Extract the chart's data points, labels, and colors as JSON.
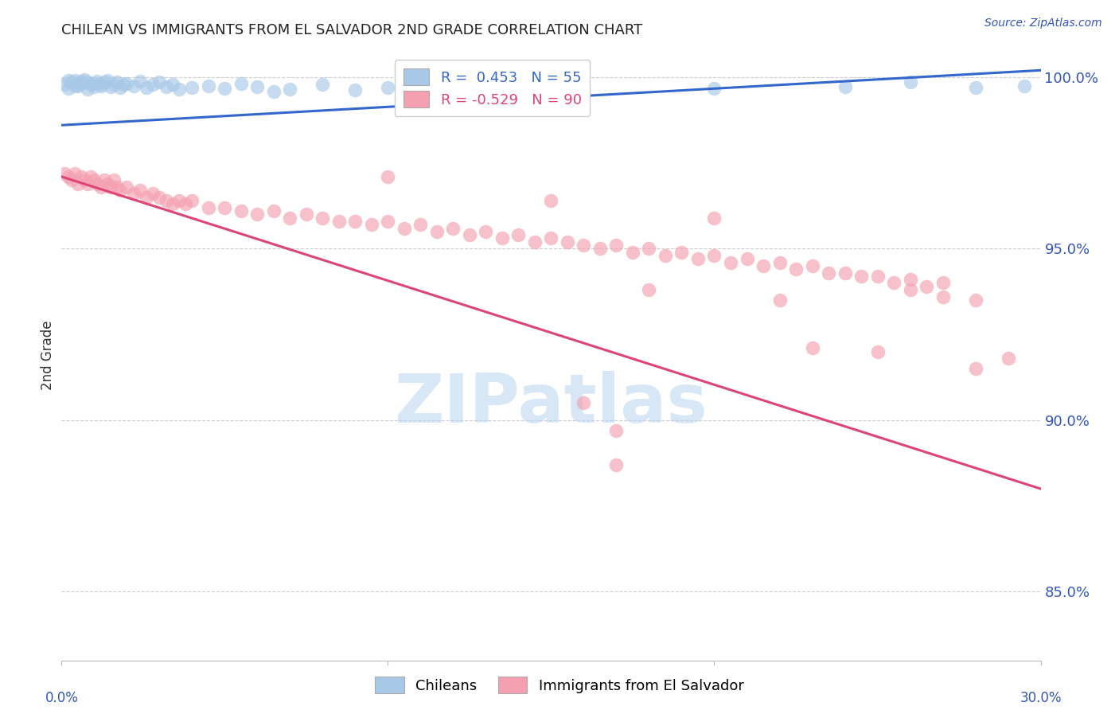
{
  "title": "CHILEAN VS IMMIGRANTS FROM EL SALVADOR 2ND GRADE CORRELATION CHART",
  "source": "Source: ZipAtlas.com",
  "ylabel": "2nd Grade",
  "legend_chileans": "Chileans",
  "legend_immigrants": "Immigrants from El Salvador",
  "R_chileans": 0.453,
  "N_chileans": 55,
  "R_immigrants": -0.529,
  "N_immigrants": 90,
  "blue_color": "#a8c8e8",
  "pink_color": "#f4a0b0",
  "blue_line_color": "#3366cc",
  "pink_line_color": "#dd4477",
  "title_color": "#222222",
  "axis_color": "#3355bb",
  "watermark_color": "#b8d4ee",
  "background_color": "#ffffff",
  "grid_color": "#cccccc",
  "xlim": [
    0.0,
    0.3
  ],
  "ylim": [
    0.83,
    1.008
  ],
  "yticks": [
    0.85,
    0.9,
    0.95,
    1.0
  ],
  "ytick_labels": [
    "85.0%",
    "90.0%",
    "95.0%",
    "100.0%"
  ],
  "xtick_positions": [
    0.0,
    0.1,
    0.2,
    0.3
  ],
  "blue_line_x": [
    0.0,
    0.3
  ],
  "blue_line_y": [
    0.986,
    1.002
  ],
  "pink_line_x": [
    0.0,
    0.3
  ],
  "pink_line_y": [
    0.971,
    0.88
  ],
  "blue_points": [
    [
      0.001,
      0.998
    ],
    [
      0.002,
      0.999
    ],
    [
      0.003,
      0.9985
    ],
    [
      0.004,
      0.999
    ],
    [
      0.005,
      0.9975
    ],
    [
      0.006,
      0.9988
    ],
    [
      0.007,
      0.9992
    ],
    [
      0.008,
      0.9985
    ],
    [
      0.009,
      0.9978
    ],
    [
      0.01,
      0.9982
    ],
    [
      0.011,
      0.9988
    ],
    [
      0.012,
      0.9975
    ],
    [
      0.013,
      0.9985
    ],
    [
      0.014,
      0.999
    ],
    [
      0.015,
      0.9972
    ],
    [
      0.016,
      0.998
    ],
    [
      0.017,
      0.9985
    ],
    [
      0.018,
      0.997
    ],
    [
      0.019,
      0.9978
    ],
    [
      0.02,
      0.9982
    ],
    [
      0.022,
      0.9975
    ],
    [
      0.024,
      0.9988
    ],
    [
      0.026,
      0.997
    ],
    [
      0.028,
      0.9978
    ],
    [
      0.03,
      0.9985
    ],
    [
      0.032,
      0.9972
    ],
    [
      0.034,
      0.998
    ],
    [
      0.036,
      0.9965
    ],
    [
      0.04,
      0.997
    ],
    [
      0.045,
      0.9975
    ],
    [
      0.05,
      0.9968
    ],
    [
      0.055,
      0.9982
    ],
    [
      0.06,
      0.9972
    ],
    [
      0.065,
      0.9958
    ],
    [
      0.07,
      0.9965
    ],
    [
      0.08,
      0.9978
    ],
    [
      0.09,
      0.9962
    ],
    [
      0.1,
      0.997
    ],
    [
      0.11,
      0.9975
    ],
    [
      0.12,
      0.998
    ],
    [
      0.13,
      0.9968
    ],
    [
      0.14,
      0.9965
    ],
    [
      0.15,
      0.9972
    ],
    [
      0.16,
      0.996
    ],
    [
      0.2,
      0.9968
    ],
    [
      0.24,
      0.9972
    ],
    [
      0.26,
      0.9985
    ],
    [
      0.28,
      0.997
    ],
    [
      0.295,
      0.9975
    ],
    [
      0.002,
      0.9968
    ],
    [
      0.004,
      0.9975
    ],
    [
      0.006,
      0.9982
    ],
    [
      0.008,
      0.9965
    ],
    [
      0.01,
      0.9972
    ],
    [
      0.012,
      0.9978
    ]
  ],
  "pink_points": [
    [
      0.001,
      0.972
    ],
    [
      0.002,
      0.971
    ],
    [
      0.003,
      0.97
    ],
    [
      0.004,
      0.972
    ],
    [
      0.005,
      0.969
    ],
    [
      0.006,
      0.971
    ],
    [
      0.007,
      0.97
    ],
    [
      0.008,
      0.969
    ],
    [
      0.009,
      0.971
    ],
    [
      0.01,
      0.97
    ],
    [
      0.011,
      0.969
    ],
    [
      0.012,
      0.968
    ],
    [
      0.013,
      0.97
    ],
    [
      0.014,
      0.969
    ],
    [
      0.015,
      0.968
    ],
    [
      0.016,
      0.97
    ],
    [
      0.017,
      0.968
    ],
    [
      0.018,
      0.967
    ],
    [
      0.02,
      0.968
    ],
    [
      0.022,
      0.966
    ],
    [
      0.024,
      0.967
    ],
    [
      0.026,
      0.965
    ],
    [
      0.028,
      0.966
    ],
    [
      0.03,
      0.965
    ],
    [
      0.032,
      0.964
    ],
    [
      0.034,
      0.963
    ],
    [
      0.036,
      0.964
    ],
    [
      0.038,
      0.963
    ],
    [
      0.04,
      0.964
    ],
    [
      0.045,
      0.962
    ],
    [
      0.05,
      0.962
    ],
    [
      0.055,
      0.961
    ],
    [
      0.06,
      0.96
    ],
    [
      0.065,
      0.961
    ],
    [
      0.07,
      0.959
    ],
    [
      0.075,
      0.96
    ],
    [
      0.08,
      0.959
    ],
    [
      0.085,
      0.958
    ],
    [
      0.09,
      0.958
    ],
    [
      0.095,
      0.957
    ],
    [
      0.1,
      0.958
    ],
    [
      0.105,
      0.956
    ],
    [
      0.11,
      0.957
    ],
    [
      0.115,
      0.955
    ],
    [
      0.12,
      0.956
    ],
    [
      0.125,
      0.954
    ],
    [
      0.13,
      0.955
    ],
    [
      0.135,
      0.953
    ],
    [
      0.14,
      0.954
    ],
    [
      0.145,
      0.952
    ],
    [
      0.15,
      0.953
    ],
    [
      0.155,
      0.952
    ],
    [
      0.16,
      0.951
    ],
    [
      0.165,
      0.95
    ],
    [
      0.17,
      0.951
    ],
    [
      0.175,
      0.949
    ],
    [
      0.18,
      0.95
    ],
    [
      0.185,
      0.948
    ],
    [
      0.19,
      0.949
    ],
    [
      0.195,
      0.947
    ],
    [
      0.2,
      0.948
    ],
    [
      0.205,
      0.946
    ],
    [
      0.21,
      0.947
    ],
    [
      0.215,
      0.945
    ],
    [
      0.22,
      0.946
    ],
    [
      0.225,
      0.944
    ],
    [
      0.23,
      0.945
    ],
    [
      0.235,
      0.943
    ],
    [
      0.24,
      0.943
    ],
    [
      0.245,
      0.942
    ],
    [
      0.25,
      0.942
    ],
    [
      0.255,
      0.94
    ],
    [
      0.26,
      0.941
    ],
    [
      0.265,
      0.939
    ],
    [
      0.27,
      0.94
    ],
    [
      0.1,
      0.971
    ],
    [
      0.15,
      0.964
    ],
    [
      0.2,
      0.959
    ],
    [
      0.18,
      0.938
    ],
    [
      0.22,
      0.935
    ],
    [
      0.26,
      0.938
    ],
    [
      0.27,
      0.936
    ],
    [
      0.28,
      0.915
    ],
    [
      0.25,
      0.92
    ],
    [
      0.23,
      0.921
    ],
    [
      0.16,
      0.905
    ],
    [
      0.17,
      0.897
    ],
    [
      0.28,
      0.935
    ],
    [
      0.29,
      0.918
    ],
    [
      0.17,
      0.887
    ]
  ]
}
